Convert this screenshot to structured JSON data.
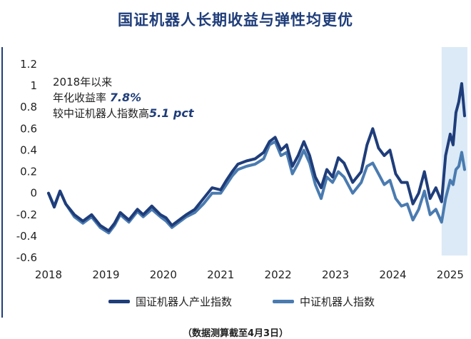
{
  "chart_data": {
    "type": "line",
    "title": "国证机器人长期收益与弹性均更优",
    "annotation": {
      "line1": "2018年以来",
      "line2_prefix": "年化收益率 ",
      "line2_value": "7.8%",
      "line3_prefix": "较中证机器人指数高",
      "line3_value": "5.1 pct"
    },
    "footnote": "（数据测算截至4月3日）",
    "x_ticks": [
      "2018",
      "2019",
      "2020",
      "2021",
      "2022",
      "2023",
      "2024",
      "2025"
    ],
    "y_ticks": [
      "1.2",
      "1",
      "0.8",
      "0.6",
      "0.4",
      "0.2",
      "0",
      "-0.2",
      "-0.4",
      "-0.6"
    ],
    "xlim": [
      2018.0,
      2025.3
    ],
    "ylim": [
      -0.6,
      1.2
    ],
    "highlight_range": [
      2024.85,
      2025.3
    ],
    "series": [
      {
        "name": "国证机器人产业指数",
        "color": "#1f3d7a",
        "x": [
          2018.0,
          2018.1,
          2018.2,
          2018.3,
          2018.45,
          2018.6,
          2018.75,
          2018.9,
          2019.05,
          2019.15,
          2019.25,
          2019.4,
          2019.55,
          2019.65,
          2019.8,
          2019.95,
          2020.05,
          2020.15,
          2020.25,
          2020.4,
          2020.55,
          2020.7,
          2020.85,
          2021.0,
          2021.1,
          2021.2,
          2021.3,
          2021.45,
          2021.6,
          2021.75,
          2021.85,
          2021.95,
          2022.05,
          2022.15,
          2022.25,
          2022.35,
          2022.45,
          2022.55,
          2022.65,
          2022.75,
          2022.85,
          2022.95,
          2023.05,
          2023.15,
          2023.3,
          2023.45,
          2023.55,
          2023.65,
          2023.75,
          2023.85,
          2023.95,
          2024.05,
          2024.15,
          2024.25,
          2024.35,
          2024.45,
          2024.55,
          2024.65,
          2024.75,
          2024.85,
          2024.92,
          2025.0,
          2025.05,
          2025.1,
          2025.15,
          2025.2,
          2025.25
        ],
        "values": [
          0.0,
          -0.13,
          0.02,
          -0.1,
          -0.2,
          -0.26,
          -0.2,
          -0.3,
          -0.35,
          -0.28,
          -0.18,
          -0.25,
          -0.15,
          -0.2,
          -0.12,
          -0.2,
          -0.23,
          -0.3,
          -0.26,
          -0.2,
          -0.15,
          -0.05,
          0.05,
          0.03,
          0.12,
          0.2,
          0.27,
          0.3,
          0.32,
          0.38,
          0.48,
          0.52,
          0.4,
          0.45,
          0.25,
          0.35,
          0.48,
          0.35,
          0.15,
          0.05,
          0.22,
          0.15,
          0.33,
          0.28,
          0.1,
          0.2,
          0.45,
          0.6,
          0.42,
          0.35,
          0.4,
          0.18,
          0.1,
          0.1,
          -0.1,
          0.0,
          0.2,
          -0.05,
          0.05,
          -0.08,
          0.35,
          0.55,
          0.45,
          0.75,
          0.85,
          1.02,
          0.72
        ]
      },
      {
        "name": "中证机器人指数",
        "color": "#4a7bb0",
        "x": [
          2018.0,
          2018.1,
          2018.2,
          2018.3,
          2018.45,
          2018.6,
          2018.75,
          2018.9,
          2019.05,
          2019.15,
          2019.25,
          2019.4,
          2019.55,
          2019.65,
          2019.8,
          2019.95,
          2020.05,
          2020.15,
          2020.25,
          2020.4,
          2020.55,
          2020.7,
          2020.85,
          2021.0,
          2021.1,
          2021.2,
          2021.3,
          2021.45,
          2021.6,
          2021.75,
          2021.85,
          2021.95,
          2022.05,
          2022.15,
          2022.25,
          2022.35,
          2022.45,
          2022.55,
          2022.65,
          2022.75,
          2022.85,
          2022.95,
          2023.05,
          2023.15,
          2023.3,
          2023.45,
          2023.55,
          2023.65,
          2023.75,
          2023.85,
          2023.95,
          2024.05,
          2024.15,
          2024.25,
          2024.35,
          2024.45,
          2024.55,
          2024.65,
          2024.75,
          2024.85,
          2024.92,
          2025.0,
          2025.05,
          2025.1,
          2025.15,
          2025.2,
          2025.25
        ],
        "values": [
          0.0,
          -0.12,
          0.02,
          -0.1,
          -0.22,
          -0.28,
          -0.22,
          -0.32,
          -0.37,
          -0.3,
          -0.2,
          -0.27,
          -0.17,
          -0.22,
          -0.15,
          -0.22,
          -0.26,
          -0.32,
          -0.28,
          -0.22,
          -0.18,
          -0.1,
          0.0,
          0.0,
          0.08,
          0.16,
          0.22,
          0.25,
          0.27,
          0.32,
          0.45,
          0.48,
          0.35,
          0.38,
          0.18,
          0.28,
          0.4,
          0.28,
          0.08,
          -0.05,
          0.15,
          0.1,
          0.2,
          0.15,
          0.0,
          0.1,
          0.25,
          0.28,
          0.18,
          0.08,
          0.12,
          -0.05,
          -0.12,
          -0.1,
          -0.25,
          -0.15,
          0.02,
          -0.2,
          -0.15,
          -0.27,
          -0.05,
          0.12,
          0.08,
          0.22,
          0.25,
          0.38,
          0.22
        ]
      }
    ]
  }
}
